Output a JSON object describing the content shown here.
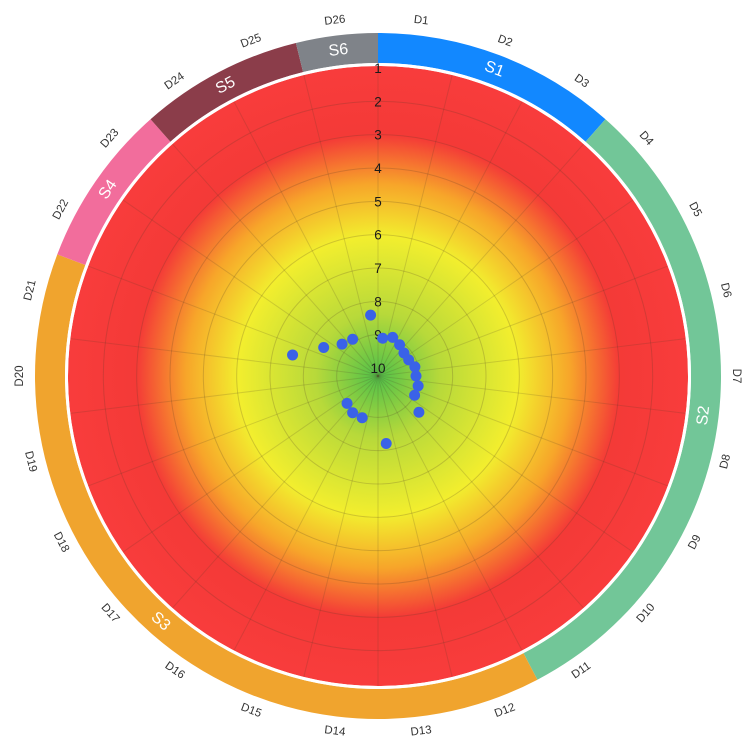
{
  "chart_data": {
    "type": "scatter",
    "polar": true,
    "radial_scale_labels": [
      "1",
      "2",
      "3",
      "4",
      "5",
      "6",
      "7",
      "8",
      "9",
      "10"
    ],
    "radial_range": [
      1,
      10
    ],
    "radial_inverted": true,
    "background_gradient": [
      "#4fc04a",
      "#b7d93a",
      "#f2ee2e",
      "#f7a52a",
      "#f43a37",
      "#f83c3c"
    ],
    "sectors": [
      {
        "label": "S1",
        "color": "#1288ff",
        "dimensions": [
          "D1",
          "D2",
          "D3"
        ]
      },
      {
        "label": "S2",
        "color": "#72c698",
        "dimensions": [
          "D4",
          "D5",
          "D6",
          "D7",
          "D8",
          "D9",
          "D10",
          "D11"
        ]
      },
      {
        "label": "S3",
        "color": "#f0a42e",
        "dimensions": [
          "D12",
          "D13",
          "D14",
          "D15",
          "D16",
          "D17",
          "D18",
          "D19",
          "D20",
          "D21"
        ]
      },
      {
        "label": "S4",
        "color": "#f26d9c",
        "dimensions": [
          "D22",
          "D23"
        ]
      },
      {
        "label": "S5",
        "color": "#8b3d4a",
        "dimensions": [
          "D24",
          "D25"
        ]
      },
      {
        "label": "S6",
        "color": "#7f8389",
        "dimensions": [
          "D26"
        ]
      }
    ],
    "dimensions": [
      "D1",
      "D2",
      "D3",
      "D4",
      "D5",
      "D6",
      "D7",
      "D8",
      "D9",
      "D10",
      "D11",
      "D12",
      "D13",
      "D14",
      "D15",
      "D16",
      "D17",
      "D18",
      "D19",
      "D20",
      "D21",
      "D22",
      "D23",
      "D24",
      "D25",
      "D26"
    ],
    "points": [
      {
        "dimension": "D1",
        "value": 9.1
      },
      {
        "dimension": "D2",
        "value": 9.0
      },
      {
        "dimension": "D3",
        "value": 9.1
      },
      {
        "dimension": "D4",
        "value": 9.2
      },
      {
        "dimension": "D5",
        "value": 9.2
      },
      {
        "dimension": "D6",
        "value": 9.1
      },
      {
        "dimension": "D7",
        "value": 9.1
      },
      {
        "dimension": "D8",
        "value": 9.0
      },
      {
        "dimension": "D9",
        "value": 9.0
      },
      {
        "dimension": "D10",
        "value": 8.6
      },
      {
        "dimension": "D13",
        "value": 8.2
      },
      {
        "dimension": "D15",
        "value": 8.9
      },
      {
        "dimension": "D16",
        "value": 8.9
      },
      {
        "dimension": "D17",
        "value": 9.0
      },
      {
        "dimension": "D21",
        "value": 7.6
      },
      {
        "dimension": "D22",
        "value": 8.4
      },
      {
        "dimension": "D23",
        "value": 8.8
      },
      {
        "dimension": "D24",
        "value": 8.9
      },
      {
        "dimension": "D26",
        "value": 8.4
      }
    ],
    "point_color": "#3a62e8",
    "grid": true
  }
}
